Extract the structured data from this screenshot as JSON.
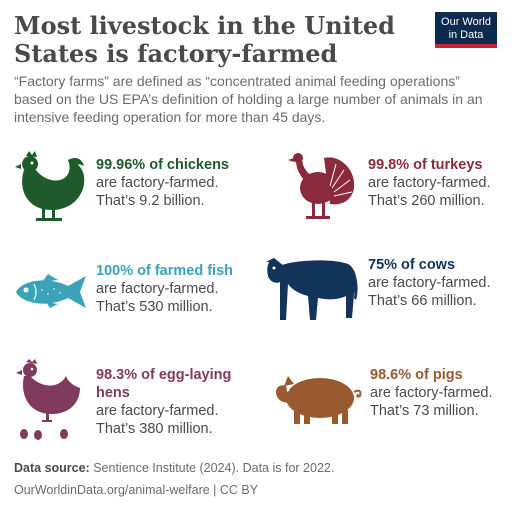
{
  "header": {
    "title": "Most livestock in the United States is factory-farmed",
    "subtitle": "“Factory farms” are defined as “concentrated animal feeding operations” based on the US EPA’s definition of holding a large number of animals in an intensive feeding operation for more than 45 days.",
    "logo_line1": "Our World",
    "logo_line2": "in Data"
  },
  "items": [
    {
      "highlight": "99.96% of chickens",
      "line2": "are factory-farmed.",
      "line3": "That’s 9.2 billion.",
      "color": "#1e5a2a",
      "icon": "chicken-icon"
    },
    {
      "highlight": "99.8% of turkeys",
      "line2": "are factory-farmed.",
      "line3": "That’s 260 million.",
      "color": "#8b2a3d",
      "icon": "turkey-icon"
    },
    {
      "highlight": "100% of farmed fish",
      "line2": "are factory-farmed.",
      "line3": "That’s 530 million.",
      "color": "#3aa3b8",
      "icon": "fish-icon"
    },
    {
      "highlight": "75% of cows",
      "line2": "are factory-farmed.",
      "line3": "That’s 66 million.",
      "color": "#12335a",
      "icon": "cow-icon"
    },
    {
      "highlight": "98.3% of egg-laying hens",
      "line2": "are factory-farmed.",
      "line3": "That’s 380 million.",
      "color": "#7f3a5e",
      "icon": "hen-icon"
    },
    {
      "highlight": "98.6% of pigs",
      "line2": "are factory-farmed.",
      "line3": "That’s 73 million.",
      "color": "#9a5a30",
      "icon": "pig-icon"
    }
  ],
  "footer": {
    "source_label": "Data source:",
    "source_text": " Sentience Institute (2024). Data is for 2022.",
    "url": "OurWorldinData.org/animal-welfare | CC BY"
  }
}
